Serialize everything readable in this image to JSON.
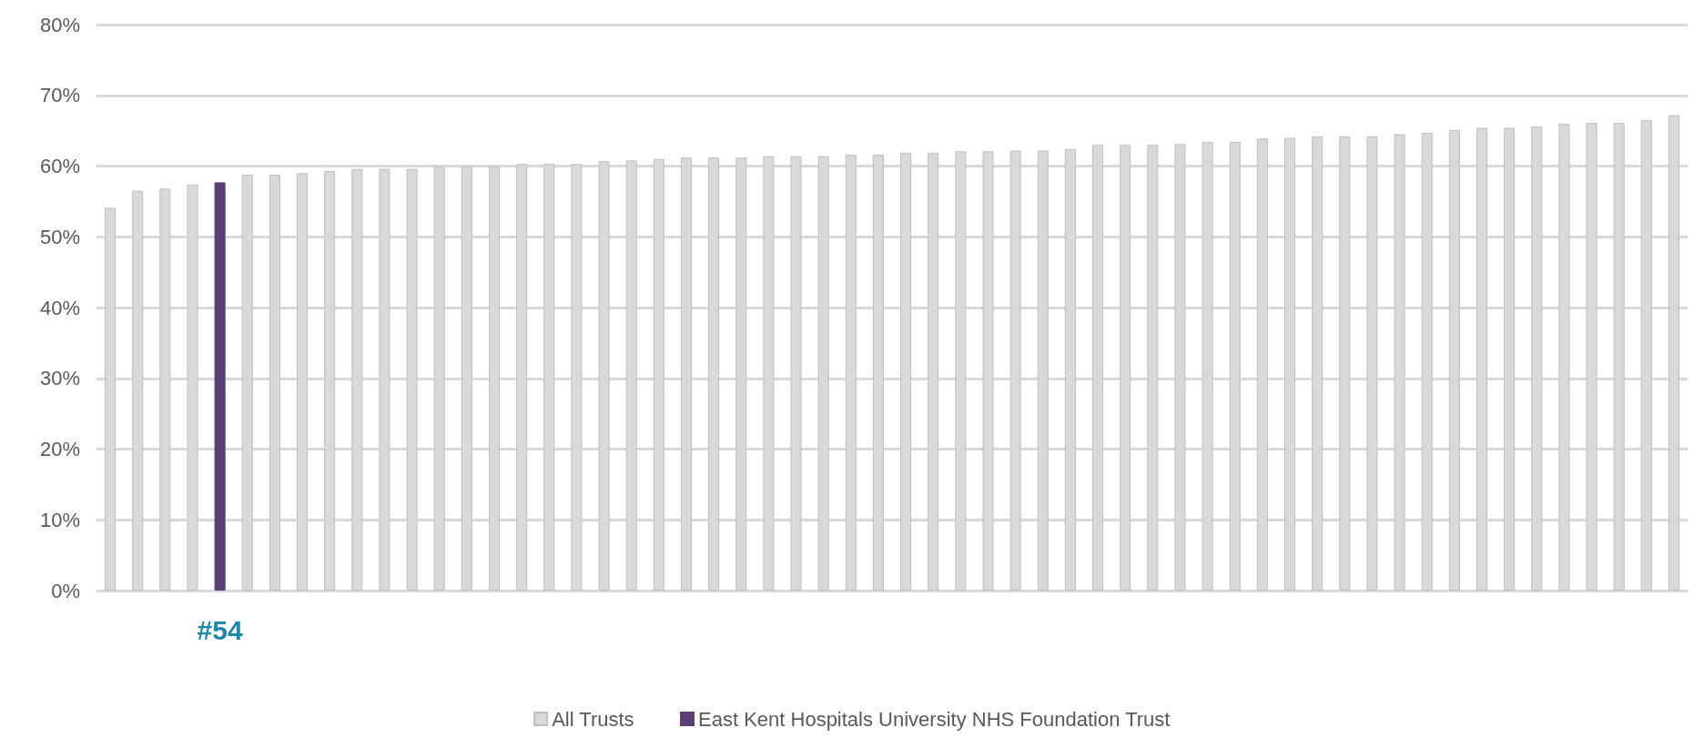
{
  "chart_data": {
    "type": "bar",
    "categories": [
      null,
      null,
      null,
      null,
      null,
      null,
      null,
      null,
      null,
      null,
      null,
      null,
      null,
      null,
      null,
      null,
      null,
      null,
      null,
      null,
      null,
      null,
      null,
      null,
      null,
      null,
      null,
      null,
      null,
      null,
      null,
      null,
      null,
      null,
      null,
      null,
      null,
      null,
      null,
      null,
      null,
      null,
      null,
      null,
      null,
      null,
      null,
      null,
      null,
      null,
      null,
      null,
      null,
      null,
      null,
      null,
      null,
      null
    ],
    "series": [
      {
        "name": "All Trusts",
        "color": "#d9d9d9",
        "values": [
          54.1,
          56.5,
          56.8,
          57.4,
          null,
          58.8,
          58.8,
          59.0,
          59.3,
          59.6,
          59.6,
          59.6,
          59.9,
          59.9,
          59.9,
          60.3,
          60.3,
          60.3,
          60.7,
          60.8,
          61.0,
          61.2,
          61.2,
          61.2,
          61.4,
          61.4,
          61.4,
          61.6,
          61.6,
          61.9,
          61.9,
          62.1,
          62.1,
          62.2,
          62.2,
          62.4,
          63.0,
          63.0,
          63.0,
          63.1,
          63.4,
          63.4,
          63.9,
          64.0,
          64.2,
          64.2,
          64.2,
          64.5,
          64.7,
          65.1,
          65.4,
          65.4,
          65.6,
          66.0,
          66.1,
          66.1,
          66.5,
          67.2
        ]
      },
      {
        "name": "East Kent Hospitals University NHS Foundation Trust",
        "color": "#5b3e73",
        "values": [
          null,
          null,
          null,
          null,
          57.7,
          null,
          null,
          null,
          null,
          null,
          null,
          null,
          null,
          null,
          null,
          null,
          null,
          null,
          null,
          null,
          null,
          null,
          null,
          null,
          null,
          null,
          null,
          null,
          null,
          null,
          null,
          null,
          null,
          null,
          null,
          null,
          null,
          null,
          null,
          null,
          null,
          null,
          null,
          null,
          null,
          null,
          null,
          null,
          null,
          null,
          null,
          null,
          null,
          null,
          null,
          null,
          null,
          null
        ]
      }
    ],
    "ylim": [
      0,
      80
    ],
    "yticks": [
      {
        "value": 0,
        "label": "0%"
      },
      {
        "value": 10,
        "label": "10%"
      },
      {
        "value": 20,
        "label": "20%"
      },
      {
        "value": 30,
        "label": "30%"
      },
      {
        "value": 40,
        "label": "40%"
      },
      {
        "value": 50,
        "label": "50%"
      },
      {
        "value": 60,
        "label": "60%"
      },
      {
        "value": 70,
        "label": "70%"
      },
      {
        "value": 80,
        "label": "80%"
      }
    ],
    "annotations": [
      "#54"
    ],
    "grid": "y",
    "legend": "bottom"
  }
}
